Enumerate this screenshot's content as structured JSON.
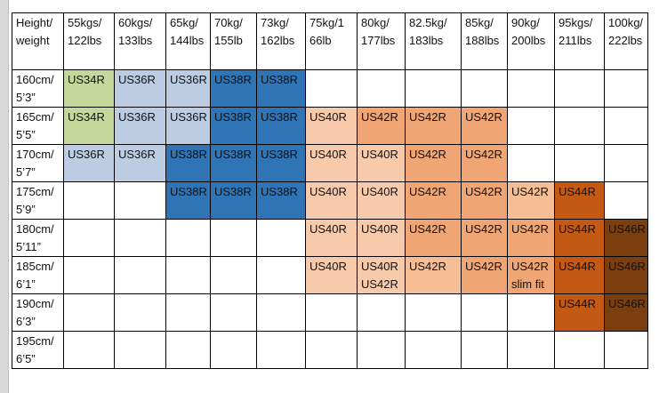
{
  "page": {
    "background": "#FFFFFF",
    "page_edge_color": "#D9D9D9"
  },
  "palette": {
    "green": "#C5D79B",
    "lightblue": "#BCCDE3",
    "blue": "#2F74B5",
    "lightorange": "#F7CAAC",
    "midlightorange": "#F6BE94",
    "midorange": "#F0A674",
    "darkorange": "#C45914",
    "brown": "#7B3E0F",
    "empty": "#FFFFFF"
  },
  "table": {
    "corner_header": "Height/\nweight",
    "column_headers": [
      "55kgs/\n122lbs",
      "60kgs/\n133lbs",
      "65kg/\n144lbs",
      "70kg/\n155lb",
      "73kg/\n162lbs",
      "75kg/1\n66lb",
      "80kg/\n177lbs",
      "82.5kg/\n183lbs",
      "85kg/\n188lbs",
      "90kg/\n200lbs",
      "95kgs/\n211lbs",
      "100kg/\n222lbs"
    ],
    "rows": [
      {
        "label": "160cm/\n5’3”",
        "cells": [
          {
            "text": "US34R",
            "color": "green"
          },
          {
            "text": "US36R",
            "color": "lightblue"
          },
          {
            "text": "US36R",
            "color": "lightblue"
          },
          {
            "text": "US38R",
            "color": "blue"
          },
          {
            "text": "US38R",
            "color": "blue"
          },
          {
            "text": "",
            "color": "empty"
          },
          {
            "text": "",
            "color": "empty"
          },
          {
            "text": "",
            "color": "empty"
          },
          {
            "text": "",
            "color": "empty"
          },
          {
            "text": "",
            "color": "empty"
          },
          {
            "text": "",
            "color": "empty"
          },
          {
            "text": "",
            "color": "empty"
          }
        ]
      },
      {
        "label": "165cm/\n5’5”",
        "cells": [
          {
            "text": "US34R",
            "color": "green"
          },
          {
            "text": "US36R",
            "color": "lightblue"
          },
          {
            "text": "US36R",
            "color": "lightblue"
          },
          {
            "text": "US38R",
            "color": "blue"
          },
          {
            "text": "US38R",
            "color": "blue"
          },
          {
            "text": "US40R",
            "color": "lightorange"
          },
          {
            "text": "US42R",
            "color": "midorange"
          },
          {
            "text": "US42R",
            "color": "midorange"
          },
          {
            "text": "US42R",
            "color": "midorange"
          },
          {
            "text": "",
            "color": "empty"
          },
          {
            "text": "",
            "color": "empty"
          },
          {
            "text": "",
            "color": "empty"
          }
        ]
      },
      {
        "label": "170cm/\n5’7”",
        "cells": [
          {
            "text": "US36R",
            "color": "lightblue"
          },
          {
            "text": "US36R",
            "color": "lightblue"
          },
          {
            "text": "US38R",
            "color": "blue"
          },
          {
            "text": "US38R",
            "color": "blue"
          },
          {
            "text": "US38R",
            "color": "blue"
          },
          {
            "text": "US40R",
            "color": "lightorange"
          },
          {
            "text": "US40R",
            "color": "lightorange"
          },
          {
            "text": "US42R",
            "color": "midorange"
          },
          {
            "text": "US42R",
            "color": "midorange"
          },
          {
            "text": "",
            "color": "empty"
          },
          {
            "text": "",
            "color": "empty"
          },
          {
            "text": "",
            "color": "empty"
          }
        ]
      },
      {
        "label": "175cm/\n5’9”",
        "cells": [
          {
            "text": "",
            "color": "empty"
          },
          {
            "text": "",
            "color": "empty"
          },
          {
            "text": "US38R",
            "color": "blue"
          },
          {
            "text": "US38R",
            "color": "blue"
          },
          {
            "text": "US38R",
            "color": "blue"
          },
          {
            "text": "US40R",
            "color": "lightorange"
          },
          {
            "text": "US40R",
            "color": "lightorange"
          },
          {
            "text": "US42R",
            "color": "midorange"
          },
          {
            "text": "US42R",
            "color": "midorange"
          },
          {
            "text": "US42R",
            "color": "midlightorange"
          },
          {
            "text": "US44R",
            "color": "darkorange"
          },
          {
            "text": "",
            "color": "empty"
          }
        ]
      },
      {
        "label": "180cm/\n5’11”",
        "cells": [
          {
            "text": "",
            "color": "empty"
          },
          {
            "text": "",
            "color": "empty"
          },
          {
            "text": "",
            "color": "empty"
          },
          {
            "text": "",
            "color": "empty"
          },
          {
            "text": "",
            "color": "empty"
          },
          {
            "text": "US40R",
            "color": "lightorange"
          },
          {
            "text": "US40R",
            "color": "lightorange"
          },
          {
            "text": "US42R",
            "color": "midorange"
          },
          {
            "text": "US42R",
            "color": "midorange"
          },
          {
            "text": "US42R",
            "color": "midorange"
          },
          {
            "text": "US44R",
            "color": "darkorange"
          },
          {
            "text": "US46R",
            "color": "brown"
          }
        ]
      },
      {
        "label": "185cm/\n6’1”",
        "cells": [
          {
            "text": "",
            "color": "empty"
          },
          {
            "text": "",
            "color": "empty"
          },
          {
            "text": "",
            "color": "empty"
          },
          {
            "text": "",
            "color": "empty"
          },
          {
            "text": "",
            "color": "empty"
          },
          {
            "text": "US40R",
            "color": "lightorange"
          },
          {
            "text": "US40R\nUS42R",
            "color": "lightorange"
          },
          {
            "text": "US42R",
            "color": "midlightorange"
          },
          {
            "text": "US42R",
            "color": "midorange"
          },
          {
            "text": "US42R\nslim fit",
            "color": "midorange"
          },
          {
            "text": "US44R",
            "color": "darkorange"
          },
          {
            "text": "US46R",
            "color": "brown"
          }
        ]
      },
      {
        "label": "190cm/\n6’3”",
        "cells": [
          {
            "text": "",
            "color": "empty"
          },
          {
            "text": "",
            "color": "empty"
          },
          {
            "text": "",
            "color": "empty"
          },
          {
            "text": "",
            "color": "empty"
          },
          {
            "text": "",
            "color": "empty"
          },
          {
            "text": "",
            "color": "empty"
          },
          {
            "text": "",
            "color": "empty"
          },
          {
            "text": "",
            "color": "empty"
          },
          {
            "text": "",
            "color": "empty"
          },
          {
            "text": "",
            "color": "empty"
          },
          {
            "text": "US44R",
            "color": "darkorange"
          },
          {
            "text": "US46R",
            "color": "brown"
          }
        ]
      },
      {
        "label": "195cm/\n6’5”",
        "cells": [
          {
            "text": "",
            "color": "empty"
          },
          {
            "text": "",
            "color": "empty"
          },
          {
            "text": "",
            "color": "empty"
          },
          {
            "text": "",
            "color": "empty"
          },
          {
            "text": "",
            "color": "empty"
          },
          {
            "text": "",
            "color": "empty"
          },
          {
            "text": "",
            "color": "empty"
          },
          {
            "text": "",
            "color": "empty"
          },
          {
            "text": "",
            "color": "empty"
          },
          {
            "text": "",
            "color": "empty"
          },
          {
            "text": "",
            "color": "empty"
          },
          {
            "text": "",
            "color": "empty"
          }
        ]
      }
    ]
  }
}
